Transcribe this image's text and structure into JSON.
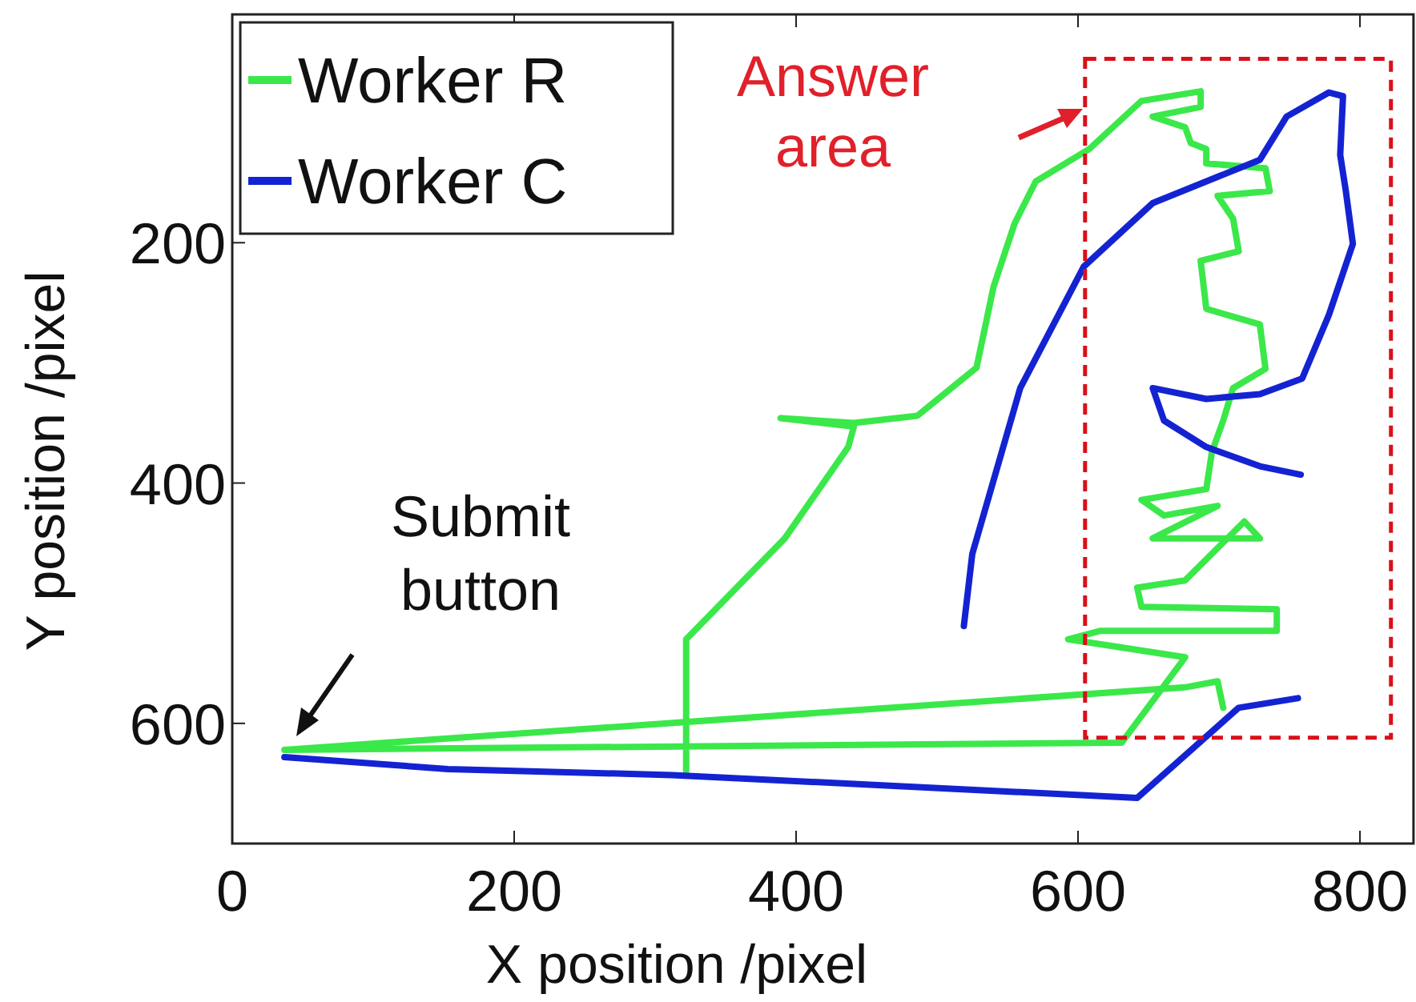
{
  "chart_data": {
    "type": "line",
    "xlabel": "X position /pixel",
    "ylabel": "Y position /pixel",
    "xlim": [
      0,
      838
    ],
    "ylim": [
      700,
      10
    ],
    "xticks": [
      0,
      200,
      400,
      600,
      800
    ],
    "yticks": [
      200,
      400,
      600
    ],
    "legend": "top left",
    "grid": false,
    "marker": "none",
    "line_style": "solid",
    "series": [
      {
        "name": "Worker R",
        "color": "#3be84a",
        "x": [
          322,
          322,
          392,
          437,
          441,
          389,
          441,
          486,
          528,
          540,
          555,
          570,
          608,
          645,
          687,
          687,
          653,
          676,
          680,
          691,
          691,
          733,
          736,
          699,
          710,
          714,
          687,
          691,
          729,
          733,
          710,
          703,
          695,
          691,
          645,
          661,
          699,
          653,
          729,
          718,
          676,
          642,
          645,
          741,
          741,
          616,
          593,
          676,
          631,
          37,
          676,
          699,
          703
        ],
        "values": [
          640,
          530,
          446,
          370,
          353,
          346,
          350,
          344,
          304,
          237,
          184,
          149,
          122,
          82,
          74,
          87,
          95,
          104,
          117,
          122,
          134,
          138,
          157,
          161,
          180,
          207,
          215,
          255,
          268,
          305,
          321,
          348,
          374,
          405,
          414,
          427,
          419,
          446,
          446,
          432,
          481,
          487,
          503,
          505,
          523,
          523,
          530,
          545,
          616,
          622,
          570,
          565,
          587
        ]
      },
      {
        "name": "Worker C",
        "color": "#1423d2",
        "x": [
          519,
          525,
          559,
          604,
          653,
          729,
          748,
          778,
          788,
          786,
          790,
          795,
          778,
          759,
          729,
          691,
          653,
          661,
          691,
          729,
          758,
          null,
          756,
          714,
          642,
          312,
          153,
          37
        ],
        "values": [
          519,
          459,
          321,
          220,
          167,
          131,
          95,
          75,
          78,
          127,
          157,
          201,
          260,
          313,
          326,
          330,
          321,
          348,
          370,
          386,
          393,
          null,
          579,
          587,
          662,
          643,
          638,
          628
        ]
      }
    ],
    "annotations": [
      "Answer area",
      "Submit button"
    ]
  }
}
